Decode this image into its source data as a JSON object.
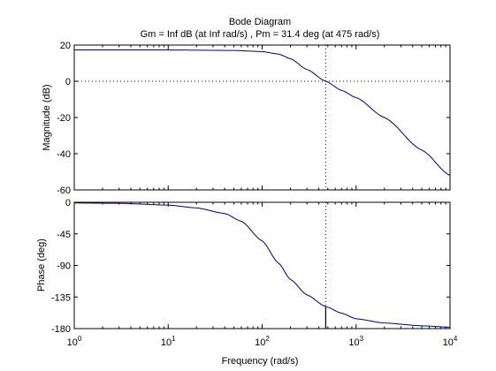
{
  "figure": {
    "title": "Bode Diagram",
    "subtitle": "Gm = Inf dB (at Inf rad/s) ,  Pm = 31.4 deg (at 475 rad/s)"
  },
  "chart_data": [
    {
      "type": "line",
      "panel": "magnitude",
      "title": "Bode Diagram",
      "subtitle": "Gm = Inf dB (at Inf rad/s) ,  Pm = 31.4 deg (at 475 rad/s)",
      "xlabel": "",
      "ylabel": "Magnitude (dB)",
      "xscale": "log",
      "xlim": [
        1,
        10000
      ],
      "ylim": [
        -60,
        20
      ],
      "yticks": [
        20,
        0,
        -20,
        -40,
        -60
      ],
      "grid": false,
      "series": [
        {
          "x": [
            1,
            10,
            50,
            100,
            150,
            200,
            300,
            475,
            700,
            1000,
            2000,
            5000,
            10000
          ],
          "y": [
            17.3,
            17.3,
            17.0,
            16.4,
            15.0,
            12.5,
            6.5,
            0.0,
            -5.0,
            -9.0,
            -20.0,
            -38.0,
            -52.0
          ]
        }
      ],
      "reference_lines": [
        {
          "orientation": "horizontal",
          "y": 0,
          "style": "dotted"
        },
        {
          "orientation": "vertical",
          "x": 475,
          "style": "dotted"
        }
      ],
      "line_color": "#00007f"
    },
    {
      "type": "line",
      "panel": "phase",
      "xlabel": "Frequency  (rad/s)",
      "ylabel": "Phase (deg)",
      "xscale": "log",
      "xlim": [
        1,
        10000
      ],
      "ylim": [
        -180,
        0
      ],
      "xticks": [
        "10^0",
        "10^1",
        "10^2",
        "10^3",
        "10^4"
      ],
      "yticks": [
        0,
        -45,
        -90,
        -135,
        -180
      ],
      "grid": false,
      "series": [
        {
          "x": [
            1,
            3,
            10,
            20,
            40,
            60,
            100,
            150,
            200,
            300,
            475,
            700,
            1000,
            2000,
            5000,
            10000
          ],
          "y": [
            -1,
            -1.5,
            -4,
            -8,
            -16,
            -27,
            -55,
            -87,
            -110,
            -132,
            -148.6,
            -158,
            -166,
            -172,
            -176,
            -178
          ]
        }
      ],
      "reference_lines": [
        {
          "orientation": "horizontal",
          "y": -180,
          "style": "dotted"
        },
        {
          "orientation": "vertical",
          "x": 475,
          "style": "dotted"
        }
      ],
      "margin_marker": {
        "x": 475,
        "from": -148.6,
        "to": -180
      },
      "line_color": "#00007f"
    }
  ]
}
